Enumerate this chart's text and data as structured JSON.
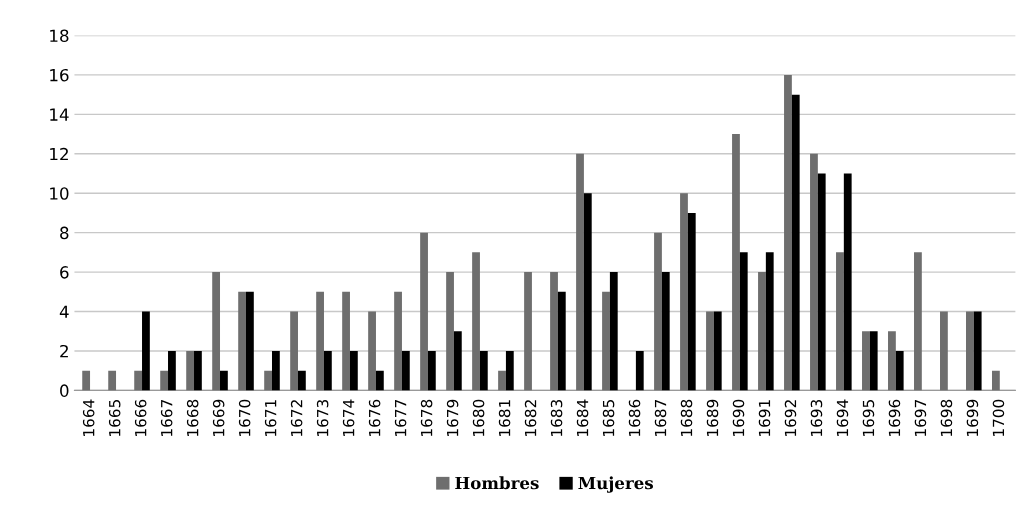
{
  "chart_data": {
    "type": "bar",
    "categories": [
      "1664",
      "1665",
      "1666",
      "1667",
      "1668",
      "1669",
      "1670",
      "1671",
      "1672",
      "1673",
      "1674",
      "1676",
      "1677",
      "1678",
      "1679",
      "1680",
      "1681",
      "1682",
      "1683",
      "1684",
      "1685",
      "1686",
      "1687",
      "1688",
      "1689",
      "1690",
      "1691",
      "1692",
      "1693",
      "1694",
      "1695",
      "1696",
      "1697",
      "1698",
      "1699",
      "1700"
    ],
    "series": [
      {
        "name": "Hombres",
        "color": "#6e6e6e",
        "values": [
          1,
          1,
          1,
          1,
          2,
          6,
          5,
          1,
          4,
          5,
          5,
          4,
          5,
          8,
          6,
          7,
          1,
          6,
          6,
          12,
          5,
          0,
          8,
          10,
          4,
          13,
          6,
          16,
          12,
          7,
          3,
          3,
          7,
          4,
          4,
          1
        ]
      },
      {
        "name": "Mujeres",
        "color": "#000000",
        "values": [
          0,
          0,
          4,
          2,
          2,
          1,
          5,
          2,
          1,
          2,
          2,
          1,
          2,
          2,
          3,
          2,
          2,
          0,
          5,
          10,
          6,
          2,
          6,
          9,
          4,
          7,
          7,
          15,
          11,
          11,
          3,
          2,
          0,
          0,
          4,
          0
        ]
      }
    ],
    "ylim": [
      0,
      18
    ],
    "yticks": [
      0,
      2,
      4,
      6,
      8,
      10,
      12,
      14,
      16,
      18
    ],
    "grid": "y",
    "legend": "bottom"
  }
}
